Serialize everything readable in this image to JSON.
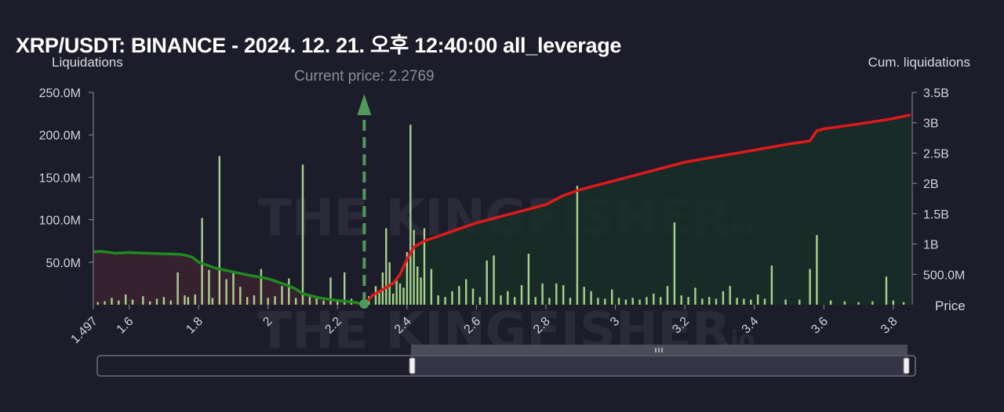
{
  "title": "XRP/USDT: BINANCE - 2024. 12. 21. 오후 12:40:00 all_leverage",
  "watermark": "THE KINGFISHER",
  "watermark_suffix": ".io",
  "colors": {
    "background": "#1c1c2b",
    "bars": "#b7e39a",
    "cum_short_line": "#1f8a1f",
    "cum_long_line": "#e01a1a",
    "fill_left": "#3a2230",
    "fill_right": "#1a2e27",
    "current_price": "#4f9a58"
  },
  "chart_data": {
    "type": "bar",
    "title": "XRP/USDT: BINANCE - 2024. 12. 21. 오후 12:40:00 all_leverage",
    "xlabel": "Price",
    "ylabel": "Liquidations",
    "y2label": "Cum. liquidations",
    "xlim": [
      1.497,
      3.85
    ],
    "ylim": [
      0,
      250000000
    ],
    "y2lim": [
      0,
      3500000000
    ],
    "x_ticks": [
      "1.497",
      "1.6",
      "1.8",
      "2",
      "2.2",
      "2.4",
      "2.6",
      "2.8",
      "3",
      "3.2",
      "3.4",
      "3.6",
      "3.8"
    ],
    "x_tick_values": [
      1.497,
      1.6,
      1.8,
      2.0,
      2.2,
      2.4,
      2.6,
      2.8,
      3.0,
      3.2,
      3.4,
      3.6,
      3.8
    ],
    "y_ticks": [
      "50.0M",
      "100.0M",
      "150.0M",
      "200.0M",
      "250.0M"
    ],
    "y_tick_values": [
      50000000,
      100000000,
      150000000,
      200000000,
      250000000
    ],
    "y2_ticks": [
      "500.0M",
      "1B",
      "1.5B",
      "2B",
      "2.5B",
      "3B",
      "3.5B"
    ],
    "y2_tick_values": [
      500000000,
      1000000000,
      1500000000,
      2000000000,
      2500000000,
      3000000000,
      3500000000
    ],
    "current_price": 2.2769,
    "annotation": "Current price: 2.2769",
    "bars": {
      "x": [
        1.51,
        1.53,
        1.55,
        1.57,
        1.59,
        1.61,
        1.64,
        1.66,
        1.68,
        1.7,
        1.72,
        1.74,
        1.76,
        1.77,
        1.79,
        1.81,
        1.83,
        1.84,
        1.86,
        1.88,
        1.9,
        1.92,
        1.94,
        1.96,
        1.98,
        2.0,
        2.02,
        2.04,
        2.06,
        2.08,
        2.1,
        2.12,
        2.14,
        2.16,
        2.18,
        2.2,
        2.22,
        2.24,
        2.27,
        2.29,
        2.31,
        2.32,
        2.33,
        2.34,
        2.35,
        2.36,
        2.37,
        2.38,
        2.39,
        2.4,
        2.41,
        2.42,
        2.43,
        2.44,
        2.45,
        2.47,
        2.49,
        2.51,
        2.53,
        2.55,
        2.57,
        2.59,
        2.61,
        2.63,
        2.65,
        2.67,
        2.69,
        2.71,
        2.73,
        2.75,
        2.77,
        2.79,
        2.81,
        2.83,
        2.85,
        2.87,
        2.89,
        2.91,
        2.93,
        2.95,
        2.97,
        2.99,
        3.01,
        3.03,
        3.05,
        3.07,
        3.09,
        3.11,
        3.13,
        3.15,
        3.17,
        3.19,
        3.21,
        3.23,
        3.25,
        3.27,
        3.29,
        3.31,
        3.33,
        3.35,
        3.37,
        3.39,
        3.41,
        3.43,
        3.45,
        3.49,
        3.53,
        3.56,
        3.58,
        3.62,
        3.66,
        3.7,
        3.74,
        3.78,
        3.8,
        3.83
      ],
      "values": [
        3000000,
        4000000,
        8000000,
        5000000,
        12000000,
        6000000,
        10000000,
        4000000,
        7000000,
        9000000,
        5000000,
        38000000,
        11000000,
        9000000,
        12000000,
        102000000,
        41000000,
        8000000,
        175000000,
        30000000,
        38000000,
        21000000,
        9000000,
        11000000,
        42000000,
        8000000,
        10000000,
        22000000,
        31000000,
        8000000,
        165000000,
        12000000,
        8000000,
        5000000,
        32000000,
        5000000,
        38000000,
        7000000,
        3000000,
        10000000,
        22000000,
        17000000,
        38000000,
        90000000,
        50000000,
        13000000,
        30000000,
        25000000,
        20000000,
        62000000,
        212000000,
        88000000,
        45000000,
        32000000,
        90000000,
        42000000,
        11000000,
        9000000,
        16000000,
        22000000,
        30000000,
        19000000,
        9000000,
        52000000,
        58000000,
        11000000,
        16000000,
        9000000,
        23000000,
        60000000,
        9000000,
        25000000,
        8000000,
        25000000,
        23000000,
        8000000,
        140000000,
        21000000,
        16000000,
        8000000,
        7000000,
        18000000,
        8000000,
        6000000,
        8000000,
        6000000,
        9000000,
        13000000,
        9000000,
        22000000,
        97000000,
        11000000,
        9000000,
        20000000,
        7000000,
        9000000,
        7000000,
        16000000,
        22000000,
        8000000,
        7000000,
        6000000,
        12000000,
        7000000,
        46000000,
        6000000,
        6000000,
        42000000,
        82000000,
        5000000,
        4000000,
        3000000,
        4000000,
        33000000,
        5000000,
        3000000
      ]
    },
    "cum_short_side": {
      "name": "",
      "x": [
        1.497,
        1.52,
        1.56,
        1.6,
        1.65,
        1.7,
        1.75,
        1.78,
        1.8,
        1.83,
        1.85,
        1.9,
        1.95,
        2.0,
        2.05,
        2.08,
        2.1,
        2.15,
        2.2,
        2.25,
        2.2769
      ],
      "values": [
        870000000,
        880000000,
        850000000,
        860000000,
        850000000,
        840000000,
        830000000,
        790000000,
        700000000,
        640000000,
        600000000,
        540000000,
        480000000,
        430000000,
        330000000,
        260000000,
        180000000,
        110000000,
        70000000,
        40000000,
        0
      ]
    },
    "cum_long_side": {
      "name": "",
      "x": [
        2.2769,
        2.3,
        2.33,
        2.36,
        2.38,
        2.4,
        2.42,
        2.45,
        2.5,
        2.55,
        2.6,
        2.7,
        2.8,
        2.85,
        2.9,
        3.0,
        3.1,
        3.2,
        3.3,
        3.4,
        3.5,
        3.56,
        3.58,
        3.6,
        3.7,
        3.78,
        3.8,
        3.85
      ],
      "values": [
        0,
        150000000,
        250000000,
        350000000,
        500000000,
        750000000,
        950000000,
        1050000000,
        1150000000,
        1250000000,
        1350000000,
        1500000000,
        1650000000,
        1800000000,
        1900000000,
        2050000000,
        2200000000,
        2350000000,
        2450000000,
        2550000000,
        2650000000,
        2700000000,
        2870000000,
        2900000000,
        2980000000,
        3050000000,
        3070000000,
        3130000000
      ]
    }
  }
}
